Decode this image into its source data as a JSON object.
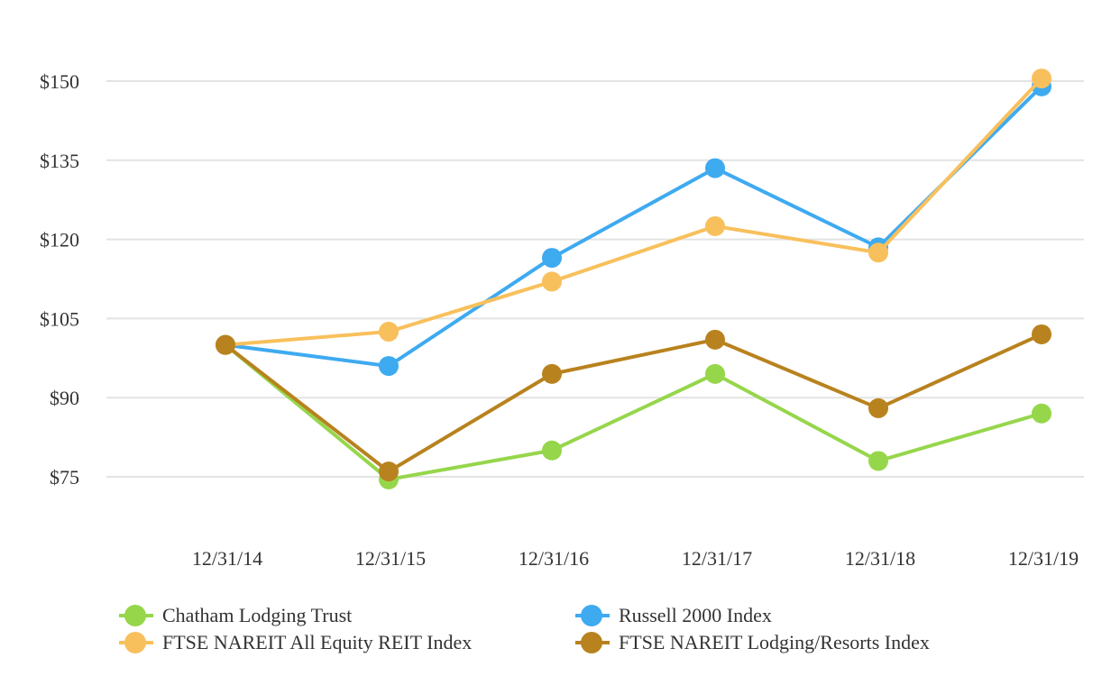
{
  "chart_data": {
    "type": "line",
    "title": "",
    "xlabel": "",
    "ylabel": "",
    "categories": [
      "12/31/14",
      "12/31/15",
      "12/31/16",
      "12/31/17",
      "12/31/18",
      "12/31/19"
    ],
    "y_ticks": [
      {
        "value": 75,
        "label": "$75"
      },
      {
        "value": 90,
        "label": "$90"
      },
      {
        "value": 105,
        "label": "$105"
      },
      {
        "value": 120,
        "label": "$120"
      },
      {
        "value": 135,
        "label": "$135"
      },
      {
        "value": 150,
        "label": "$150"
      }
    ],
    "ylim": [
      65,
      160
    ],
    "grid": true,
    "legend_position": "bottom",
    "series": [
      {
        "name": "Chatham Lodging Trust",
        "color": "#96d64b",
        "values": [
          100,
          74.5,
          80,
          94.5,
          78,
          87
        ]
      },
      {
        "name": "Russell 2000 Index",
        "color": "#3eaaf0",
        "values": [
          100,
          96,
          116.5,
          133.5,
          118.5,
          149
        ]
      },
      {
        "name": "FTSE NAREIT All Equity REIT Index",
        "color": "#f8c05c",
        "values": [
          100,
          102.5,
          112,
          122.5,
          117.5,
          150.5
        ]
      },
      {
        "name": "FTSE NAREIT Lodging/Resorts Index",
        "color": "#b8821e",
        "values": [
          100,
          76,
          94.5,
          101,
          88,
          102
        ]
      }
    ]
  }
}
